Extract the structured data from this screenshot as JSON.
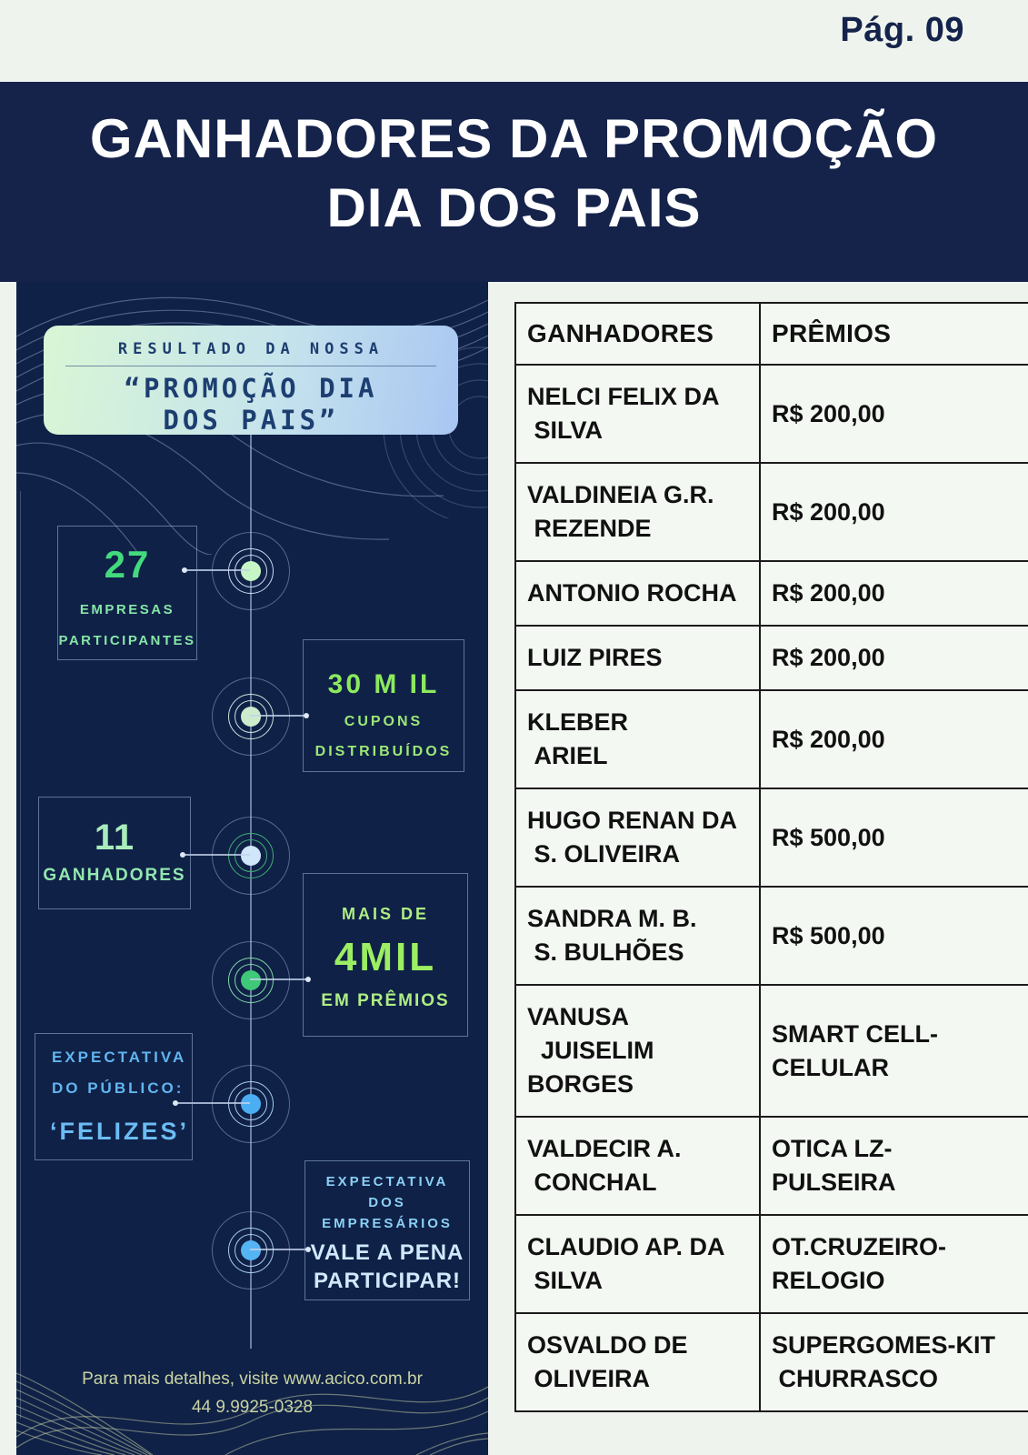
{
  "page": {
    "number_label": "Pág. 09"
  },
  "banner": {
    "title_line1": "GANHADORES DA PROMOÇÃO",
    "title_line2": "DIA DOS PAIS"
  },
  "infographic": {
    "header": {
      "eyebrow": "RESULTADO DA NOSSA",
      "title": "“PROMOÇÃO DIA\nDOS PAIS”"
    },
    "stat_empresas": {
      "value": "27",
      "label1": "EMPRESAS",
      "label2": "PARTICIPANTES"
    },
    "stat_cupons": {
      "value": "30 M IL",
      "label1": "CUPONS",
      "label2": "DISTRIBUÍDOS"
    },
    "stat_ganhadores": {
      "value": "11",
      "label1": "GANHADORES"
    },
    "stat_premios": {
      "label1": "MAIS DE",
      "value": "4MIL",
      "label2": "EM PRÊMIOS"
    },
    "expectativa_publico": {
      "label1": "EXPECTATIVA",
      "label2": "DO PÚBLICO:",
      "value": "‘FELIZES’"
    },
    "expectativa_empresarios": {
      "label1": "EXPECTATIVA",
      "label2": "DOS",
      "label3": "EMPRESÁRIOS",
      "value_line1": "VALE A PENA",
      "value_line2": "PARTICIPAR!"
    },
    "footer": {
      "line1": "Para mais detalhes, visite www.acico.com.br",
      "line2": "44 9.9925-0328"
    }
  },
  "table": {
    "headers": [
      "GANHADORES",
      "PRÊMIOS"
    ],
    "rows": [
      {
        "name": "NELCI FELIX DA\n SILVA",
        "prize": "R$ 200,00"
      },
      {
        "name": "VALDINEIA G.R.\n REZENDE",
        "prize": "R$ 200,00"
      },
      {
        "name": "ANTONIO ROCHA",
        "prize": "R$ 200,00"
      },
      {
        "name": "LUIZ PIRES",
        "prize": "R$ 200,00"
      },
      {
        "name": "KLEBER\n ARIEL",
        "prize": "R$ 200,00"
      },
      {
        "name": "HUGO RENAN DA\n S. OLIVEIRA",
        "prize": "R$ 500,00"
      },
      {
        "name": "SANDRA M. B.\n S. BULHÕES",
        "prize": "R$ 500,00"
      },
      {
        "name": "VANUSA\n  JUISELIM\nBORGES",
        "prize": "SMART CELL-\nCELULAR"
      },
      {
        "name": "VALDECIR A.\n CONCHAL",
        "prize": "OTICA LZ-\nPULSEIRA"
      },
      {
        "name": "CLAUDIO AP. DA\n SILVA",
        "prize": "OT.CRUZEIRO-\nRELOGIO"
      },
      {
        "name": "OSVALDO DE\n OLIVEIRA",
        "prize": "SUPERGOMES-KIT\n CHURRASCO"
      }
    ]
  },
  "accent_colors": {
    "navy_banner": "#15234B",
    "navy_panel": "#0F2147",
    "green_bright": "#43DA7E",
    "green_mint": "#8EE8AE",
    "lime": "#8CE95E",
    "blue": "#64B7F0",
    "blue_pale": "#CFE9FC",
    "footer_olive": "#C9D3A2",
    "table_bg": "#F4F8F3",
    "page_bg": "#EEF3ED"
  }
}
